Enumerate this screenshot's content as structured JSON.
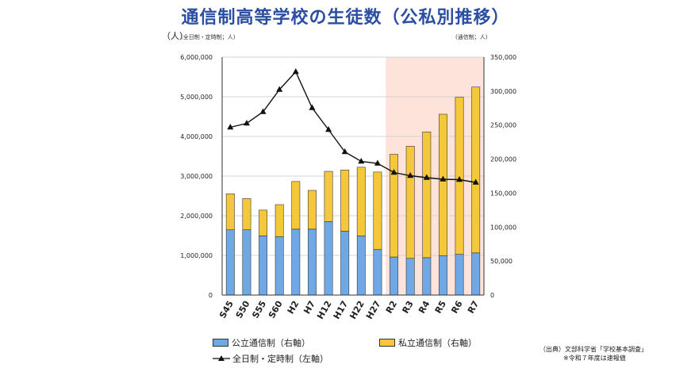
{
  "title": "通信制高等学校の生徒数（公私別推移）",
  "unit_label": "（人）",
  "left_axis_unit": "(全日制・定時制；人)",
  "right_axis_unit": "(通信制；人)",
  "source": {
    "line1": "（出典）文部科学省「学校基本調査」",
    "line2": "※令和７年度は速報値"
  },
  "legend": {
    "public": "公立通信制（右軸）",
    "private": "私立通信制（右軸）",
    "fulltime": "全日制・定時制（左軸）"
  },
  "colors": {
    "public": "#6fa8e4",
    "private": "#f5c73a",
    "line": "#111111",
    "highlight": "#fde3da"
  },
  "chart_data": {
    "type": "bar",
    "title": "通信制高等学校の生徒数（公私別推移）",
    "categories": [
      "S45",
      "S50",
      "S55",
      "S60",
      "H2",
      "H7",
      "H12",
      "H17",
      "H22",
      "H27",
      "R2",
      "R3",
      "R4",
      "R5",
      "R6",
      "R7"
    ],
    "highlight_from": "R2",
    "left_axis": {
      "label": "(全日制・定時制；人)",
      "ylim": [
        0,
        6000000
      ],
      "ticks": [
        "0",
        "1,000,000",
        "2,000,000",
        "3,000,000",
        "4,000,000",
        "5,000,000",
        "6,000,000"
      ]
    },
    "right_axis": {
      "label": "(通信制；人)",
      "ylim": [
        0,
        350000
      ],
      "ticks": [
        "0",
        "50,000",
        "100,000",
        "150,000",
        "200,000",
        "250,000",
        "300,000",
        "350,000"
      ]
    },
    "series": [
      {
        "name": "公立通信制（右軸）",
        "type": "stacked-bar",
        "axis": "right",
        "values": [
          96000,
          96000,
          87000,
          86000,
          97000,
          97000,
          108000,
          94000,
          87000,
          67000,
          56000,
          54000,
          55000,
          58000,
          60000,
          62000
        ]
      },
      {
        "name": "私立通信制（右軸）",
        "type": "stacked-bar",
        "axis": "right",
        "values": [
          53000,
          46000,
          38000,
          47000,
          70000,
          57000,
          74000,
          90000,
          101000,
          114000,
          151000,
          165000,
          185000,
          208000,
          231000,
          244000
        ]
      },
      {
        "name": "全日制・定時制（左軸）",
        "type": "line",
        "axis": "left",
        "values": [
          4230000,
          4330000,
          4620000,
          5180000,
          5630000,
          4720000,
          4170000,
          3610000,
          3370000,
          3320000,
          3090000,
          3010000,
          2960000,
          2920000,
          2910000,
          2840000
        ]
      }
    ],
    "grid": true,
    "legend_position": "bottom"
  }
}
